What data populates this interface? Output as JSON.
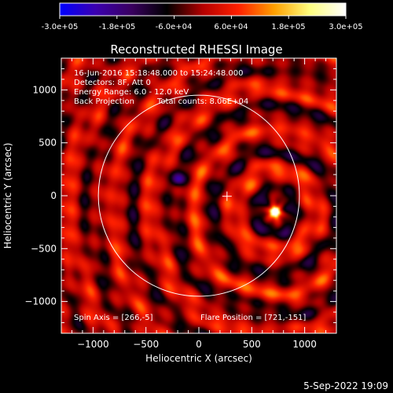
{
  "colorbar": {
    "tick_labels": [
      "-3.0e+05",
      "-1.8e+05",
      "-6.0e+04",
      "6.0e+04",
      "1.8e+05",
      "3.0e+05"
    ],
    "range": [
      -300000,
      300000
    ],
    "colormap": [
      "#0000ff",
      "#3b00b0",
      "#3a0060",
      "#000000",
      "#b40000",
      "#ff2000",
      "#ffa000",
      "#ffff80",
      "#ffffff"
    ]
  },
  "chart_data": {
    "type": "heatmap",
    "title": "Reconstructed RHESSI Image",
    "xlabel": "Heliocentric X (arcsec)",
    "ylabel": "Heliocentric Y (arcsec)",
    "xlim": [
      -1300,
      1300
    ],
    "ylim": [
      -1300,
      1300
    ],
    "x_ticks": [
      -1000,
      -500,
      0,
      500,
      1000
    ],
    "y_ticks": [
      -1000,
      -500,
      0,
      500,
      1000
    ],
    "solar_limb_radius": 950,
    "center_marker": [
      266,
      -5
    ],
    "flare_source": {
      "x": 721,
      "y": -151
    },
    "negative_lobe": {
      "x": -190,
      "y": 155
    },
    "annotations": {
      "time_range": "16-Jun-2016 15:18:48.000 to 15:24:48.000",
      "detectors": "Detectors: 8F, Att 0",
      "energy": "Energy Range: 6.0 - 12.0 keV",
      "method": "Back Projection",
      "total_counts": "Total counts: 8.06E+04",
      "spin_axis": "Spin Axis = [266,-5]",
      "flare_position": "Flare Position = [721,-151]"
    }
  },
  "footer": {
    "timestamp": "5-Sep-2022 19:09"
  }
}
